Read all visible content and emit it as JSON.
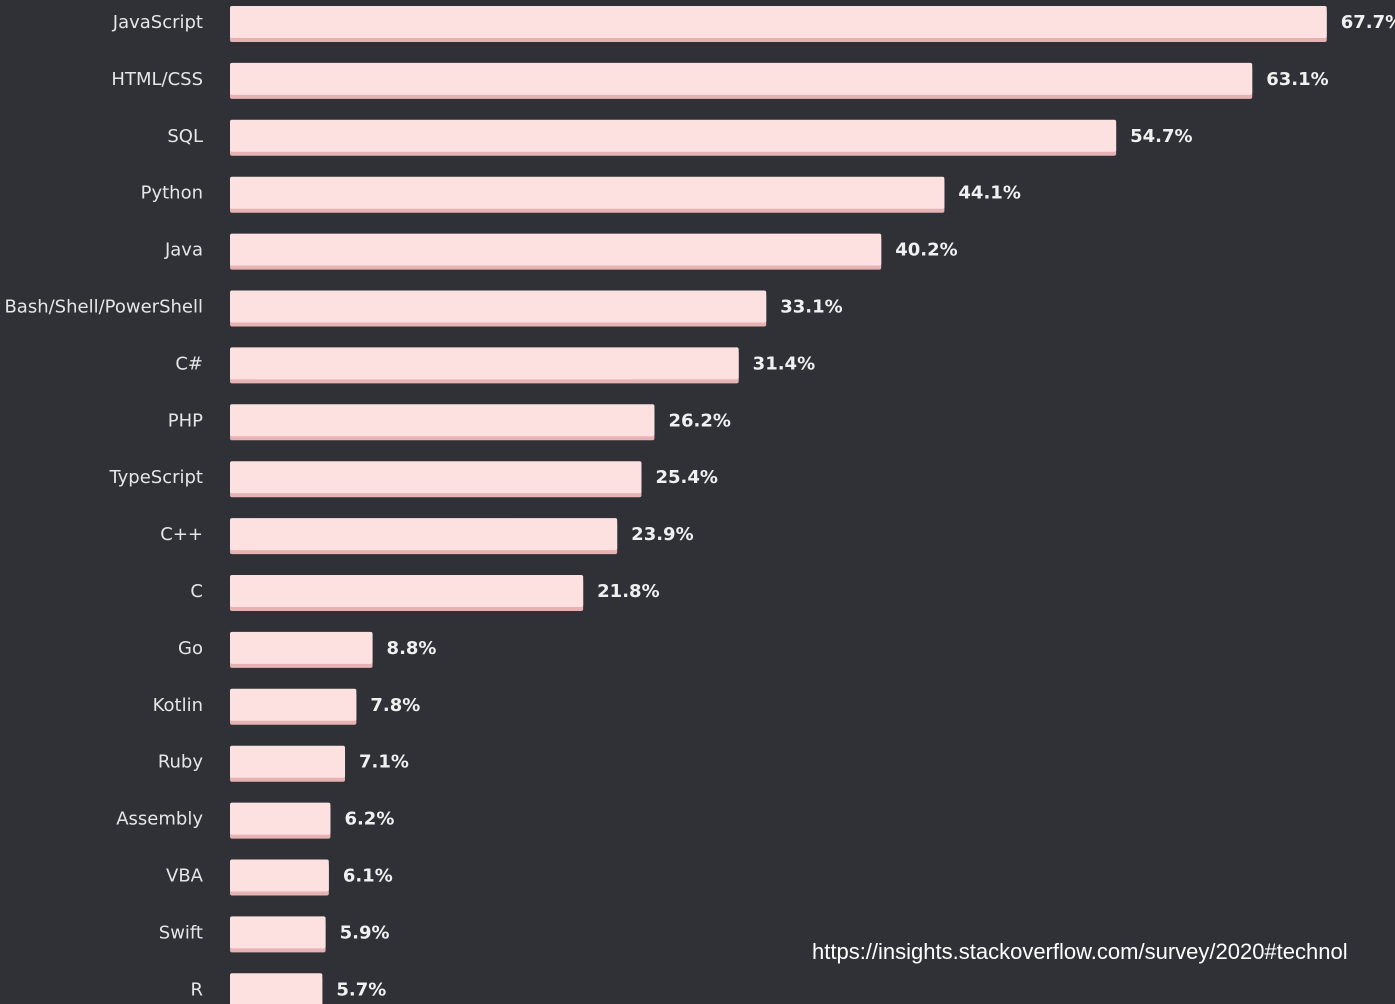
{
  "chart_data": {
    "type": "bar",
    "orientation": "horizontal",
    "categories": [
      "JavaScript",
      "HTML/CSS",
      "SQL",
      "Python",
      "Java",
      "Bash/Shell/PowerShell",
      "C#",
      "PHP",
      "TypeScript",
      "C++",
      "C",
      "Go",
      "Kotlin",
      "Ruby",
      "Assembly",
      "VBA",
      "Swift",
      "R"
    ],
    "values": [
      67.7,
      63.1,
      54.7,
      44.1,
      40.2,
      33.1,
      31.4,
      26.2,
      25.4,
      23.9,
      21.8,
      8.8,
      7.8,
      7.1,
      6.2,
      6.1,
      5.9,
      5.7
    ],
    "value_labels": [
      "67.7%",
      "63.1%",
      "54.7%",
      "44.1%",
      "40.2%",
      "33.1%",
      "31.4%",
      "26.2%",
      "25.4%",
      "23.9%",
      "21.8%",
      "8.8%",
      "7.8%",
      "7.1%",
      "6.2%",
      "6.1%",
      "5.9%",
      "5.7%"
    ],
    "title": "",
    "xlabel": "",
    "ylabel": "",
    "grid": false,
    "legend": "none"
  },
  "colors": {
    "background": "#2f3136",
    "bar": "#fde1e1",
    "bar_shadow": "#e7b2b4",
    "category_text": "#e6e6e6",
    "value_text": "#f0f0f0",
    "source_text": "#ffffff"
  },
  "source": {
    "url": "https://insights.stackoverflow.com/survey/2020#technol"
  }
}
